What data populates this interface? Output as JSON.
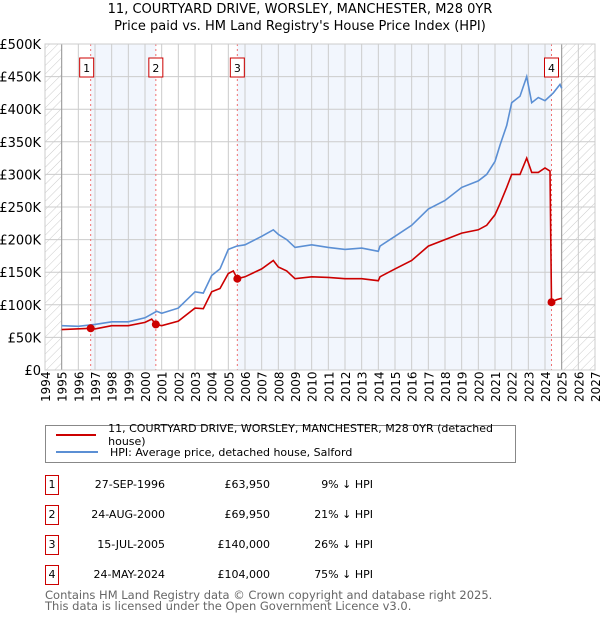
{
  "chart_data": {
    "type": "line",
    "title": "11, COURTYARD DRIVE, WORSLEY, MANCHESTER, M28 0YR",
    "subtitle": "Price paid vs. HM Land Registry's House Price Index (HPI)",
    "xlim": [
      1994,
      2027
    ],
    "ylim": [
      0,
      500000
    ],
    "x_ticks": [
      "1994",
      "1995",
      "1996",
      "1997",
      "1998",
      "1999",
      "2000",
      "2001",
      "2002",
      "2003",
      "2004",
      "2005",
      "2006",
      "2007",
      "2008",
      "2009",
      "2010",
      "2011",
      "2012",
      "2013",
      "2014",
      "2015",
      "2016",
      "2017",
      "2018",
      "2019",
      "2020",
      "2021",
      "2022",
      "2023",
      "2024",
      "2025",
      "2026",
      "2027"
    ],
    "y_ticks": [
      {
        "v": 0,
        "label": "£0"
      },
      {
        "v": 50000,
        "label": "£50K"
      },
      {
        "v": 100000,
        "label": "£100K"
      },
      {
        "v": 150000,
        "label": "£150K"
      },
      {
        "v": 200000,
        "label": "£200K"
      },
      {
        "v": 250000,
        "label": "£250K"
      },
      {
        "v": 300000,
        "label": "£300K"
      },
      {
        "v": 350000,
        "label": "£350K"
      },
      {
        "v": 400000,
        "label": "£400K"
      },
      {
        "v": 450000,
        "label": "£450K"
      },
      {
        "v": 500000,
        "label": "£500K"
      }
    ],
    "grid": true,
    "data_range": [
      1995,
      2025
    ],
    "series": [
      {
        "name": "11, COURTYARD DRIVE, WORSLEY, MANCHESTER, M28 0YR (detached house)",
        "color": "#cc0000",
        "x": [
          1995,
          1996.74,
          1997,
          1998,
          1999,
          2000,
          2000.4,
          2000.65,
          2001,
          2002,
          2003,
          2003.5,
          2004,
          2004.5,
          2005,
          2005.3,
          2005.54,
          2006,
          2007,
          2007.7,
          2008,
          2008.5,
          2009,
          2010,
          2011,
          2012,
          2013,
          2014,
          2014.1,
          2015,
          2016,
          2017,
          2018,
          2019,
          2020,
          2020.5,
          2021,
          2021.3,
          2021.7,
          2022,
          2022.5,
          2022.9,
          2023.2,
          2023.6,
          2024,
          2024.3,
          2024.39,
          2024.7,
          2025
        ],
        "y": [
          62000,
          63950,
          63000,
          68000,
          68000,
          73000,
          78000,
          69950,
          68000,
          75000,
          95000,
          94000,
          120000,
          125000,
          148000,
          152000,
          140000,
          143000,
          155000,
          168000,
          158000,
          152000,
          140000,
          143000,
          142000,
          140000,
          140000,
          137000,
          143000,
          155000,
          168000,
          190000,
          200000,
          210000,
          215000,
          222000,
          238000,
          255000,
          280000,
          300000,
          300000,
          325000,
          303000,
          303000,
          310000,
          305000,
          104000,
          108000,
          110000
        ]
      },
      {
        "name": "HPI: Average price, detached house, Salford",
        "color": "#5b8fd4",
        "x": [
          1995,
          1996,
          1997,
          1998,
          1999,
          2000,
          2000.7,
          2001,
          2002,
          2003,
          2003.5,
          2004,
          2004.5,
          2005,
          2005.5,
          2006,
          2007,
          2007.7,
          2008,
          2008.5,
          2009,
          2010,
          2011,
          2012,
          2013,
          2014,
          2014.1,
          2015,
          2016,
          2017,
          2018,
          2019,
          2020,
          2020.5,
          2021,
          2021.3,
          2021.7,
          2022,
          2022.5,
          2022.9,
          2023.2,
          2023.6,
          2024,
          2024.5,
          2024.9,
          2025
        ],
        "y": [
          68000,
          67000,
          70000,
          74000,
          74000,
          80000,
          90000,
          87000,
          95000,
          120000,
          118000,
          145000,
          155000,
          185000,
          190000,
          192000,
          205000,
          215000,
          208000,
          200000,
          188000,
          192000,
          188000,
          185000,
          187000,
          182000,
          190000,
          205000,
          222000,
          247000,
          260000,
          280000,
          290000,
          300000,
          320000,
          345000,
          375000,
          410000,
          420000,
          450000,
          410000,
          418000,
          413000,
          425000,
          438000,
          432000
        ]
      }
    ],
    "sales": [
      {
        "n": "1",
        "x": 1996.74,
        "y": 63950
      },
      {
        "n": "2",
        "x": 2000.65,
        "y": 69950
      },
      {
        "n": "3",
        "x": 2005.54,
        "y": 140000
      },
      {
        "n": "4",
        "x": 2024.39,
        "y": 104000
      }
    ],
    "legend_placement": "below"
  },
  "header": {
    "title": "11, COURTYARD DRIVE, WORSLEY, MANCHESTER, M28 0YR",
    "subtitle": "Price paid vs. HM Land Registry's House Price Index (HPI)"
  },
  "legend": [
    {
      "label": "11, COURTYARD DRIVE, WORSLEY, MANCHESTER, M28 0YR (detached house)",
      "color": "#cc0000"
    },
    {
      "label": "HPI: Average price, detached house, Salford",
      "color": "#5b8fd4"
    }
  ],
  "transactions": [
    {
      "n": "1",
      "date": "27-SEP-1996",
      "price": "£63,950",
      "pct": "9% ↓ HPI"
    },
    {
      "n": "2",
      "date": "24-AUG-2000",
      "price": "£69,950",
      "pct": "21% ↓ HPI"
    },
    {
      "n": "3",
      "date": "15-JUL-2005",
      "price": "£140,000",
      "pct": "26% ↓ HPI"
    },
    {
      "n": "4",
      "date": "24-MAY-2024",
      "price": "£104,000",
      "pct": "75% ↓ HPI"
    }
  ],
  "footer": {
    "line1": "Contains HM Land Registry data © Crown copyright and database right 2025.",
    "line2": "This data is licensed under the Open Government Licence v3.0."
  }
}
